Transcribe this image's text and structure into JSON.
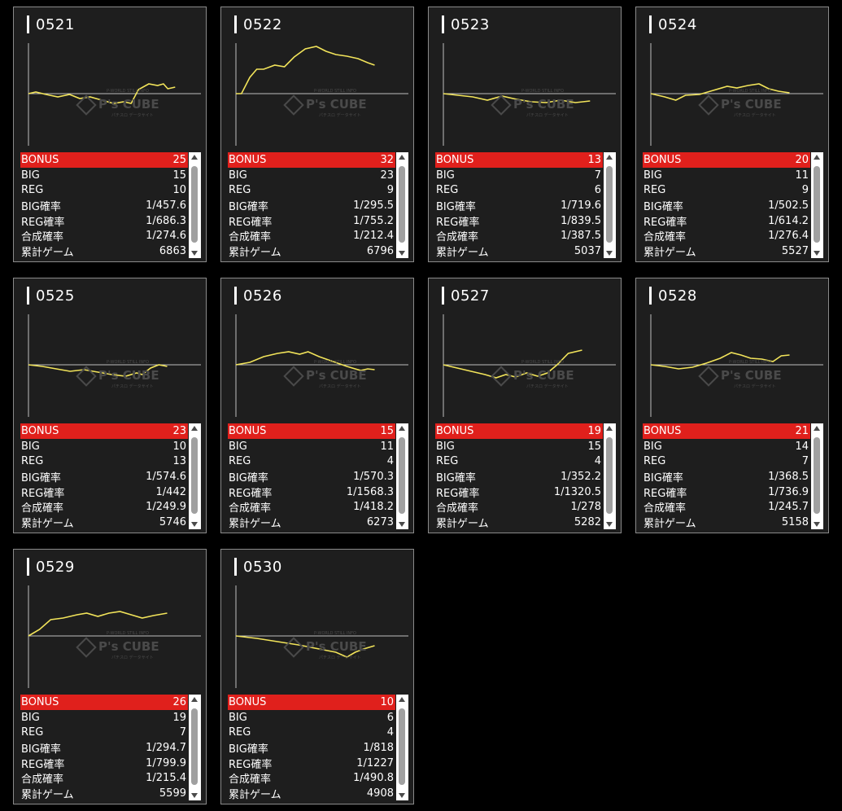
{
  "labels": {
    "bonus": "BONUS",
    "big": "BIG",
    "reg": "REG",
    "big_rate": "BIG確率",
    "reg_rate": "REG確率",
    "combined_rate": "合成確率",
    "total_games": "累計ゲーム"
  },
  "watermark": {
    "text": "P's CUBE",
    "sub_top": "P-WORLD STILL INFO",
    "sub_bottom": "パチスロ  データサイト"
  },
  "colors": {
    "bonus_row": "#e0201c",
    "graph_line": "#f2e45a",
    "card_bg": "#1e1e1e"
  },
  "machines": [
    {
      "id": "0521",
      "bonus": "25",
      "big": "15",
      "reg": "10",
      "big_rate": "1/457.6",
      "reg_rate": "1/686.3",
      "combined_rate": "1/274.6",
      "total_games": "6863",
      "trend": [
        [
          0,
          0
        ],
        [
          0.05,
          2
        ],
        [
          0.12,
          -1
        ],
        [
          0.2,
          -4
        ],
        [
          0.28,
          -1
        ],
        [
          0.35,
          -6
        ],
        [
          0.42,
          -4
        ],
        [
          0.5,
          -8
        ],
        [
          0.58,
          -12
        ],
        [
          0.65,
          -10
        ],
        [
          0.7,
          -12
        ],
        [
          0.75,
          5
        ],
        [
          0.82,
          12
        ],
        [
          0.88,
          10
        ],
        [
          0.92,
          12
        ],
        [
          0.95,
          6
        ],
        [
          1,
          8
        ]
      ]
    },
    {
      "id": "0522",
      "bonus": "32",
      "big": "23",
      "reg": "9",
      "big_rate": "1/295.5",
      "reg_rate": "1/755.2",
      "combined_rate": "1/212.4",
      "total_games": "6796",
      "trend": [
        [
          0,
          0
        ],
        [
          0.04,
          0
        ],
        [
          0.1,
          20
        ],
        [
          0.15,
          30
        ],
        [
          0.2,
          30
        ],
        [
          0.28,
          35
        ],
        [
          0.35,
          33
        ],
        [
          0.42,
          45
        ],
        [
          0.5,
          55
        ],
        [
          0.58,
          58
        ],
        [
          0.65,
          52
        ],
        [
          0.72,
          48
        ],
        [
          0.8,
          46
        ],
        [
          0.88,
          43
        ],
        [
          0.95,
          38
        ],
        [
          1,
          35
        ]
      ]
    },
    {
      "id": "0523",
      "bonus": "13",
      "big": "7",
      "reg": "6",
      "big_rate": "1/719.6",
      "reg_rate": "1/839.5",
      "combined_rate": "1/387.5",
      "total_games": "5037",
      "trend": [
        [
          0,
          0
        ],
        [
          0.1,
          -2
        ],
        [
          0.2,
          -4
        ],
        [
          0.3,
          -8
        ],
        [
          0.4,
          -3
        ],
        [
          0.5,
          -7
        ],
        [
          0.6,
          -10
        ],
        [
          0.7,
          -11
        ],
        [
          0.8,
          -8
        ],
        [
          0.9,
          -11
        ],
        [
          1,
          -9
        ]
      ]
    },
    {
      "id": "0524",
      "bonus": "20",
      "big": "11",
      "reg": "9",
      "big_rate": "1/502.5",
      "reg_rate": "1/614.2",
      "combined_rate": "1/276.4",
      "total_games": "5527",
      "trend": [
        [
          0,
          0
        ],
        [
          0.1,
          -4
        ],
        [
          0.18,
          -8
        ],
        [
          0.25,
          -2
        ],
        [
          0.35,
          -1
        ],
        [
          0.45,
          4
        ],
        [
          0.55,
          9
        ],
        [
          0.62,
          7
        ],
        [
          0.7,
          10
        ],
        [
          0.78,
          12
        ],
        [
          0.85,
          6
        ],
        [
          0.92,
          3
        ],
        [
          1,
          1
        ]
      ]
    },
    {
      "id": "0525",
      "bonus": "23",
      "big": "10",
      "reg": "13",
      "big_rate": "1/574.6",
      "reg_rate": "1/442",
      "combined_rate": "1/249.9",
      "total_games": "5746",
      "trend": [
        [
          0,
          0
        ],
        [
          0.1,
          -2
        ],
        [
          0.2,
          -5
        ],
        [
          0.3,
          -8
        ],
        [
          0.4,
          -6
        ],
        [
          0.5,
          -9
        ],
        [
          0.6,
          -12
        ],
        [
          0.7,
          -14
        ],
        [
          0.78,
          -10
        ],
        [
          0.82,
          -12
        ],
        [
          0.88,
          -4
        ],
        [
          0.94,
          0
        ],
        [
          1,
          -2
        ]
      ]
    },
    {
      "id": "0526",
      "bonus": "15",
      "big": "11",
      "reg": "4",
      "big_rate": "1/570.3",
      "reg_rate": "1/1568.3",
      "combined_rate": "1/418.2",
      "total_games": "6273",
      "trend": [
        [
          0,
          0
        ],
        [
          0.1,
          3
        ],
        [
          0.2,
          10
        ],
        [
          0.3,
          14
        ],
        [
          0.38,
          16
        ],
        [
          0.46,
          13
        ],
        [
          0.52,
          16
        ],
        [
          0.6,
          10
        ],
        [
          0.7,
          4
        ],
        [
          0.8,
          -2
        ],
        [
          0.9,
          -7
        ],
        [
          0.95,
          -5
        ],
        [
          1,
          -6
        ]
      ]
    },
    {
      "id": "0527",
      "bonus": "19",
      "big": "15",
      "reg": "4",
      "big_rate": "1/352.2",
      "reg_rate": "1/1320.5",
      "combined_rate": "1/278",
      "total_games": "5282",
      "trend": [
        [
          0,
          0
        ],
        [
          0.1,
          -4
        ],
        [
          0.2,
          -8
        ],
        [
          0.3,
          -12
        ],
        [
          0.38,
          -16
        ],
        [
          0.45,
          -12
        ],
        [
          0.52,
          -15
        ],
        [
          0.6,
          -10
        ],
        [
          0.68,
          -14
        ],
        [
          0.75,
          -10
        ],
        [
          0.82,
          0
        ],
        [
          0.9,
          14
        ],
        [
          1,
          18
        ]
      ]
    },
    {
      "id": "0528",
      "bonus": "21",
      "big": "14",
      "reg": "7",
      "big_rate": "1/368.5",
      "reg_rate": "1/736.9",
      "combined_rate": "1/245.7",
      "total_games": "5158",
      "trend": [
        [
          0,
          0
        ],
        [
          0.1,
          -2
        ],
        [
          0.2,
          -5
        ],
        [
          0.3,
          -3
        ],
        [
          0.4,
          2
        ],
        [
          0.5,
          8
        ],
        [
          0.58,
          15
        ],
        [
          0.65,
          12
        ],
        [
          0.72,
          8
        ],
        [
          0.8,
          7
        ],
        [
          0.88,
          4
        ],
        [
          0.94,
          11
        ],
        [
          1,
          12
        ]
      ]
    },
    {
      "id": "0529",
      "bonus": "26",
      "big": "19",
      "reg": "7",
      "big_rate": "1/294.7",
      "reg_rate": "1/799.9",
      "combined_rate": "1/215.4",
      "total_games": "5599",
      "trend": [
        [
          0,
          0
        ],
        [
          0.08,
          8
        ],
        [
          0.16,
          20
        ],
        [
          0.25,
          22
        ],
        [
          0.35,
          26
        ],
        [
          0.42,
          28
        ],
        [
          0.5,
          24
        ],
        [
          0.58,
          28
        ],
        [
          0.66,
          30
        ],
        [
          0.74,
          26
        ],
        [
          0.82,
          22
        ],
        [
          0.9,
          25
        ],
        [
          1,
          28
        ]
      ]
    },
    {
      "id": "0530",
      "bonus": "10",
      "big": "6",
      "reg": "4",
      "big_rate": "1/818",
      "reg_rate": "1/1227",
      "combined_rate": "1/490.8",
      "total_games": "4908",
      "trend": [
        [
          0,
          0
        ],
        [
          0.15,
          -3
        ],
        [
          0.3,
          -7
        ],
        [
          0.45,
          -11
        ],
        [
          0.6,
          -16
        ],
        [
          0.72,
          -20
        ],
        [
          0.8,
          -26
        ],
        [
          0.86,
          -20
        ],
        [
          0.92,
          -16
        ],
        [
          1,
          -12
        ]
      ]
    }
  ]
}
